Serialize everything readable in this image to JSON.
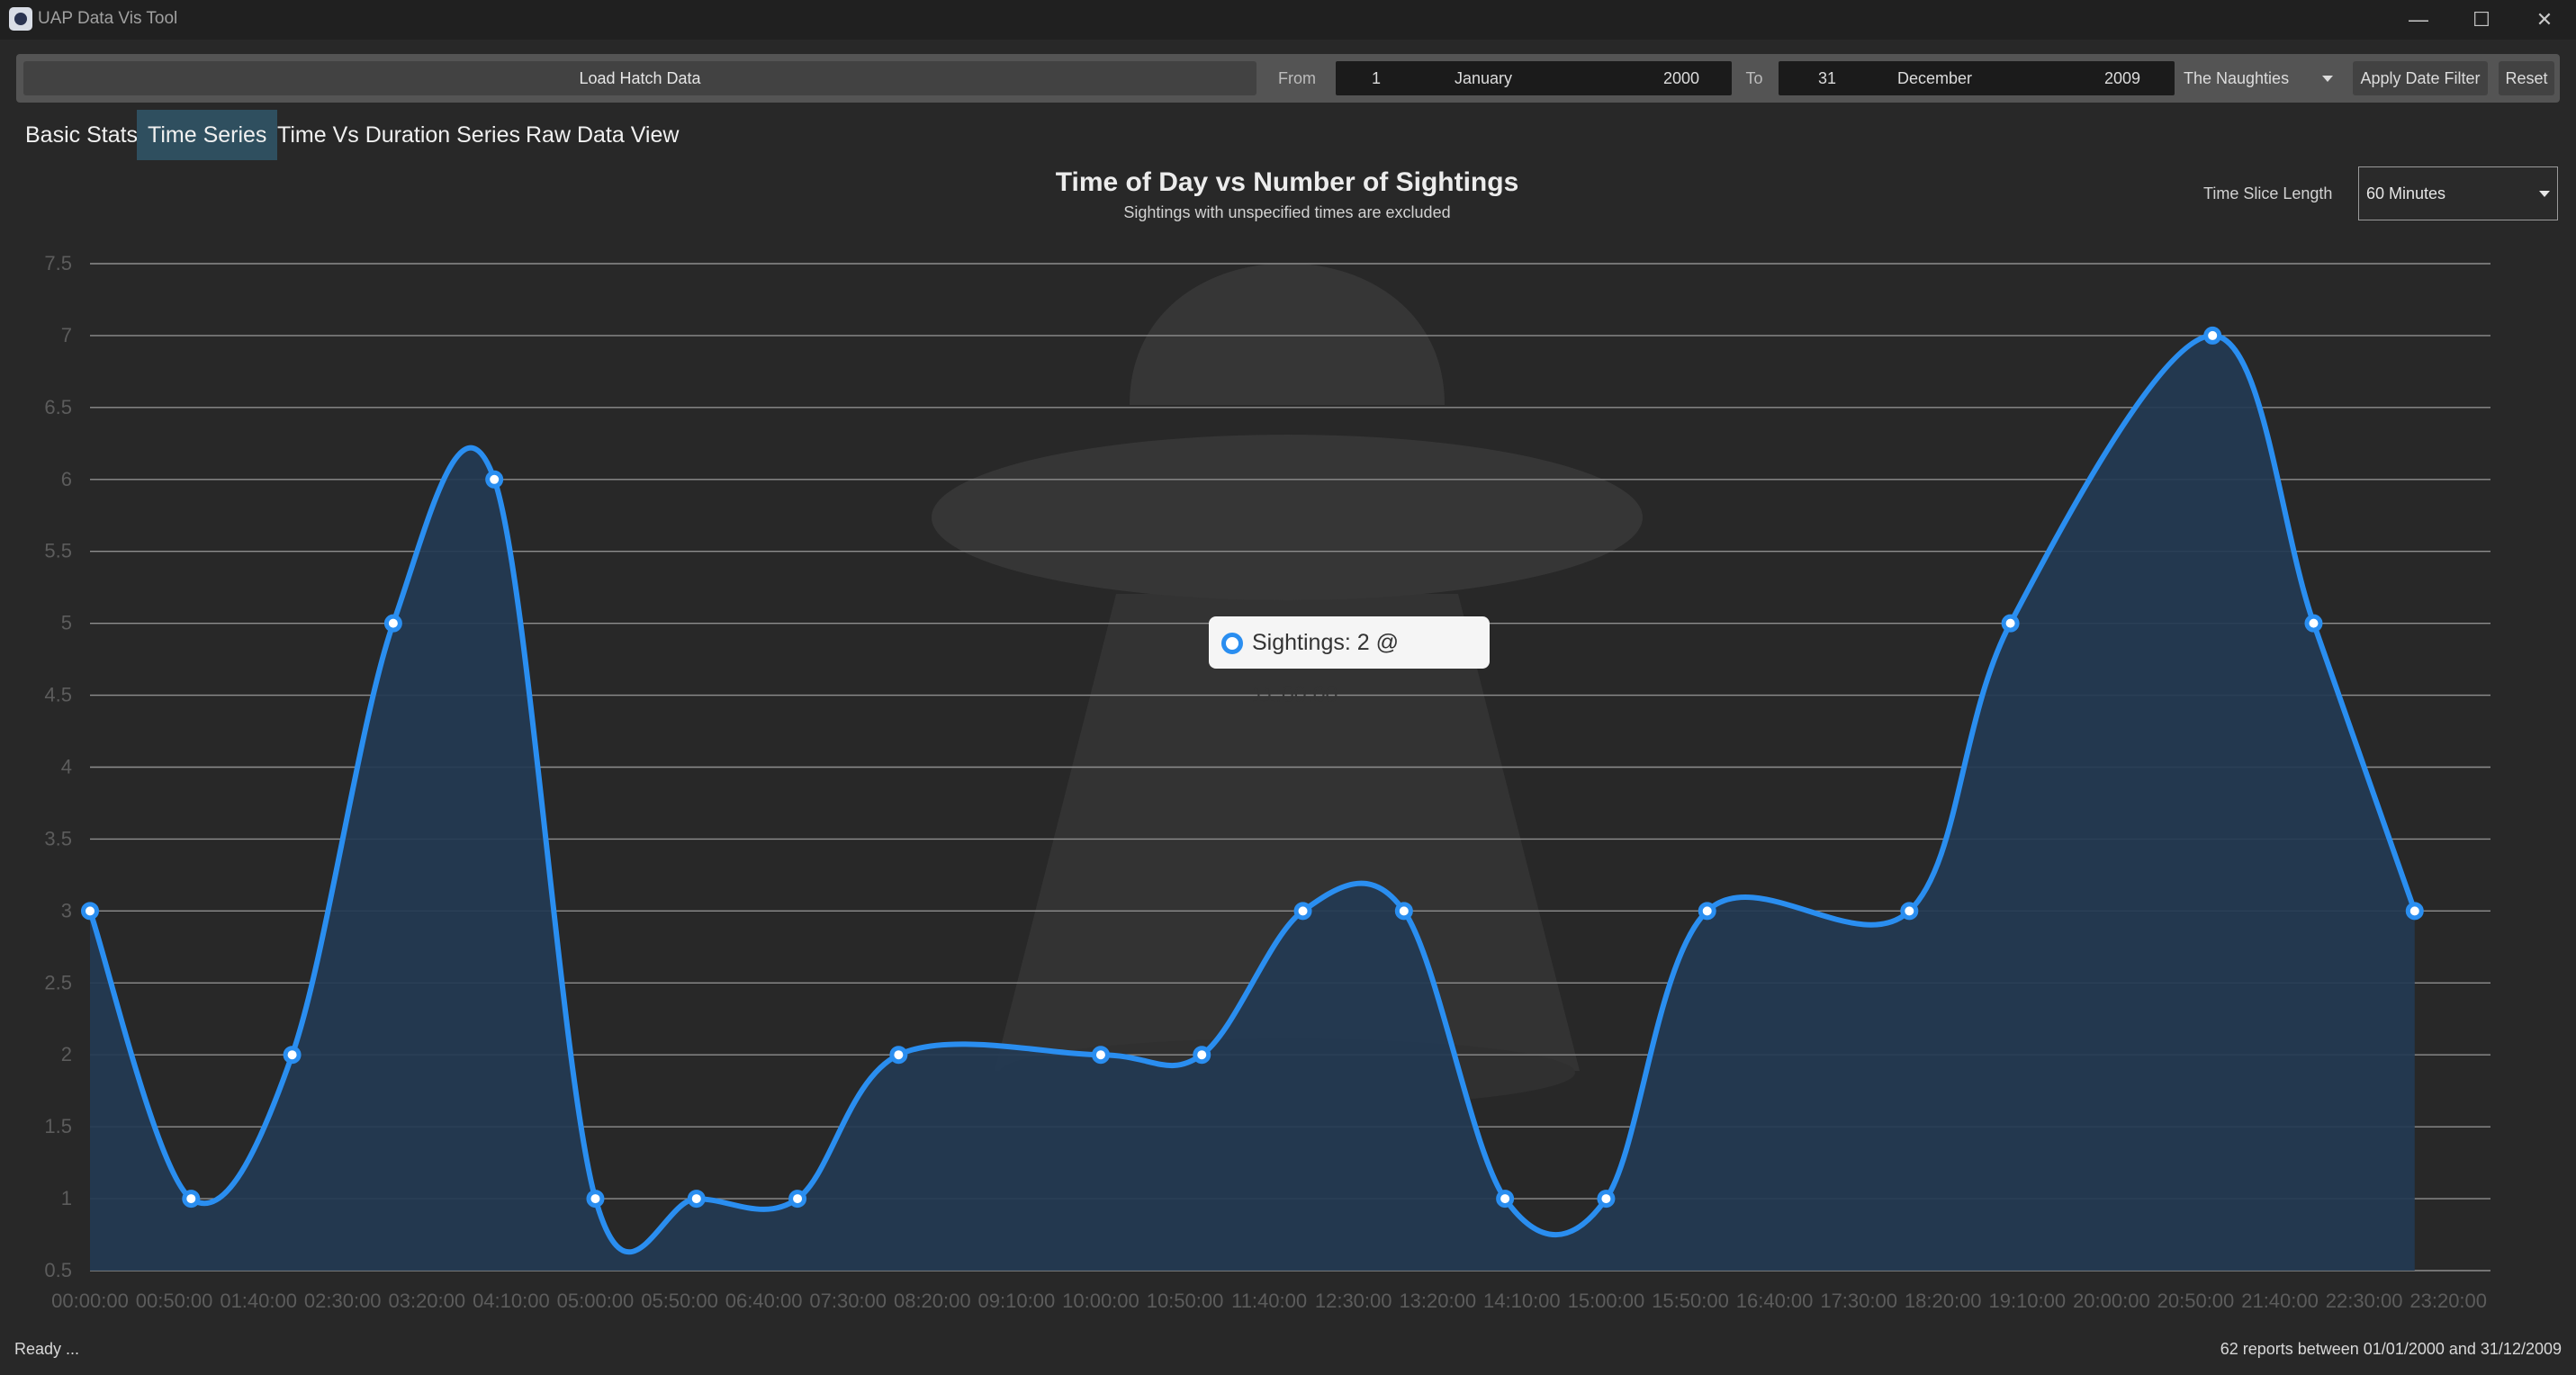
{
  "window": {
    "title": "UAP Data Vis Tool"
  },
  "toolbar": {
    "load_label": "Load Hatch Data",
    "from_label": "From",
    "from_day": "1",
    "from_month": "January",
    "from_year": "2000",
    "to_label": "To",
    "to_day": "31",
    "to_month": "December",
    "to_year": "2009",
    "preset_value": "The Naughties",
    "apply_label": "Apply Date Filter",
    "reset_label": "Reset"
  },
  "tabs": [
    {
      "label": "Basic Stats",
      "active": false
    },
    {
      "label": "Time Series",
      "active": true
    },
    {
      "label": "Time Vs Duration Series",
      "active": false
    },
    {
      "label": "Raw Data View",
      "active": false
    }
  ],
  "controls": {
    "slice_label": "Time Slice Length",
    "slice_value": "60 Minutes"
  },
  "tooltip": {
    "text": "Sightings: 2 @ 11:00:00"
  },
  "status": {
    "left": "Ready ...",
    "right": "62 reports between 01/01/2000 and 31/12/2009"
  },
  "colors": {
    "line": "#2a8ef0",
    "fill": "#233a52",
    "background": "#282828",
    "active_tab": "#2f4f5f"
  },
  "chart_data": {
    "type": "area",
    "title": "Time of Day vs Number of Sightings",
    "subtitle": "Sightings with unspecified times are excluded",
    "xlabel": "",
    "ylabel": "",
    "ylim": [
      0.5,
      7.5
    ],
    "y_ticks": [
      "7.5",
      "7",
      "6.5",
      "6",
      "5.5",
      "5",
      "4.5",
      "4",
      "3.5",
      "3",
      "2.5",
      "2",
      "1.5",
      "1",
      "0.5"
    ],
    "x_tick_labels": [
      "00:00:00",
      "00:50:00",
      "01:40:00",
      "02:30:00",
      "03:20:00",
      "04:10:00",
      "05:00:00",
      "05:50:00",
      "06:40:00",
      "07:30:00",
      "08:20:00",
      "09:10:00",
      "10:00:00",
      "10:50:00",
      "11:40:00",
      "12:30:00",
      "13:20:00",
      "14:10:00",
      "15:00:00",
      "15:50:00",
      "16:40:00",
      "17:30:00",
      "18:20:00",
      "19:10:00",
      "20:00:00",
      "20:50:00",
      "21:40:00",
      "22:30:00",
      "23:20:00"
    ],
    "x_range_minutes": [
      0,
      1425
    ],
    "grid": true,
    "series": [
      {
        "x": [
          "00:00:00",
          "01:00:00",
          "02:00:00",
          "03:00:00",
          "04:00:00",
          "05:00:00",
          "06:00:00",
          "07:00:00",
          "08:00:00",
          "09:00:00",
          "10:00:00",
          "11:00:00",
          "12:00:00",
          "13:00:00",
          "14:00:00",
          "15:00:00",
          "16:00:00",
          "17:00:00",
          "18:00:00",
          "19:00:00",
          "20:00:00",
          "21:00:00",
          "22:00:00",
          "23:00:00"
        ],
        "values": [
          3,
          1,
          2,
          5,
          6,
          1,
          1,
          1,
          2,
          null,
          2,
          2,
          3,
          3,
          1,
          1,
          3,
          null,
          3,
          5,
          null,
          7,
          5,
          3
        ]
      }
    ]
  }
}
